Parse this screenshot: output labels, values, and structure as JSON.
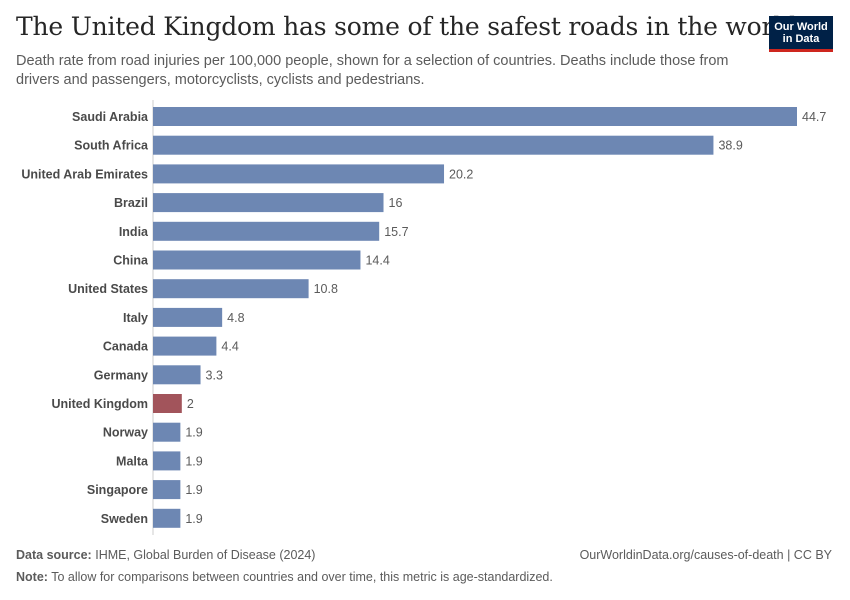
{
  "header": {
    "title": "The United Kingdom has some of the safest roads in the world",
    "subtitle": "Death rate from road injuries per 100,000 people, shown for a selection of countries. Deaths include those from drivers and passengers, motorcyclists, cyclists and pedestrians.",
    "logo_line1": "Our World",
    "logo_line2": "in Data"
  },
  "chart_data": {
    "type": "bar",
    "orientation": "horizontal",
    "title": "The United Kingdom has some of the safest roads in the world",
    "categories": [
      "Saudi Arabia",
      "South Africa",
      "United Arab Emirates",
      "Brazil",
      "India",
      "China",
      "United States",
      "Italy",
      "Canada",
      "Germany",
      "United Kingdom",
      "Norway",
      "Malta",
      "Singapore",
      "Sweden"
    ],
    "values": [
      44.7,
      38.9,
      20.2,
      16,
      15.7,
      14.4,
      10.8,
      4.8,
      4.4,
      3.3,
      2,
      1.9,
      1.9,
      1.9,
      1.9
    ],
    "value_labels": [
      "44.7",
      "38.9",
      "20.2",
      "16",
      "15.7",
      "14.4",
      "10.8",
      "4.8",
      "4.4",
      "3.3",
      "2",
      "1.9",
      "1.9",
      "1.9",
      "1.9"
    ],
    "highlight_category": "United Kingdom",
    "xlim": [
      0,
      44.7
    ],
    "colors": {
      "bar": "#6d87b3",
      "highlight": "#a2545b"
    },
    "grid": false,
    "legend": "none"
  },
  "footer": {
    "source_label": "Data source:",
    "source_text": "IHME, Global Burden of Disease (2024)",
    "url": "OurWorldinData.org/causes-of-death | CC BY",
    "note_label": "Note:",
    "note_text": "To allow for comparisons between countries and over time, this metric is age-standardized."
  }
}
